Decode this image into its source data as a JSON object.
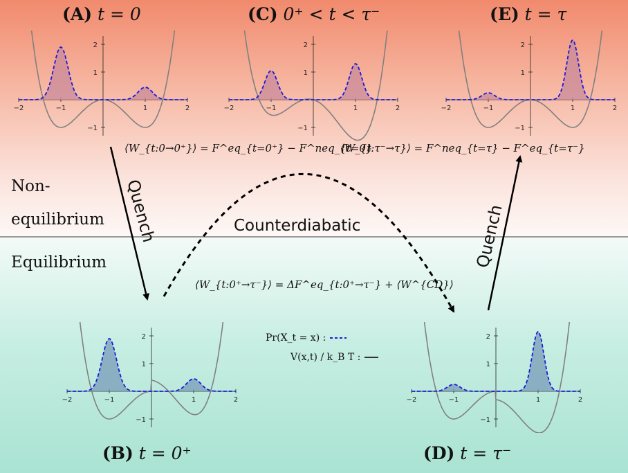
{
  "panels": {
    "A": {
      "letter": "(A)",
      "condition": "t = 0"
    },
    "C": {
      "letter": "(C)",
      "condition": "0⁺ < t < τ⁻"
    },
    "E": {
      "letter": "(E)",
      "condition": "t = τ"
    },
    "B": {
      "letter": "(B)",
      "condition": "t = 0⁺"
    },
    "D": {
      "letter": "(D)",
      "condition": "t = τ⁻"
    }
  },
  "regions": {
    "nonequilibrium_line1": "Non-",
    "nonequilibrium_line2": "equilibrium",
    "equilibrium": "Equilibrium"
  },
  "arrows": {
    "quench_left": "Quench",
    "quench_right": "Quench",
    "counterdiabatic": "Counterdiabatic"
  },
  "formulas": {
    "work_quench_start": "⟨W_{t:0→0⁺}⟩ = F^eq_{t=0⁺} − F^neq_{t=0}",
    "work_quench_end": "⟨W_{t:τ⁻→τ}⟩ = F^neq_{t=τ} − F^eq_{t=τ⁻}",
    "work_counterdiabatic": "⟨W_{t:0⁺→τ⁻}⟩ = ΔF^eq_{t:0⁺→τ⁻} + ⟨W^{CD}⟩"
  },
  "legend": {
    "probability_label": "Pr(X_t = x) :",
    "potential_label": "V(x,t) / k_B T :"
  },
  "axis_ticks": {
    "x": [
      "−2",
      "−1",
      "1",
      "2"
    ],
    "y": [
      "2",
      "1",
      "−1"
    ]
  },
  "colors": {
    "nonequilibrium_top": "#f18a6d",
    "equilibrium_bottom": "#a9e3d3",
    "density_line": "#1a1adb",
    "density_fill_top": "#c98a99",
    "density_fill_bottom": "#7a9bb8",
    "potential_line": "#808080"
  },
  "icons": {
    "quench_arrow": "solid-arrow",
    "counterdiabatic_arrow": "dashed-arc-arrow"
  }
}
